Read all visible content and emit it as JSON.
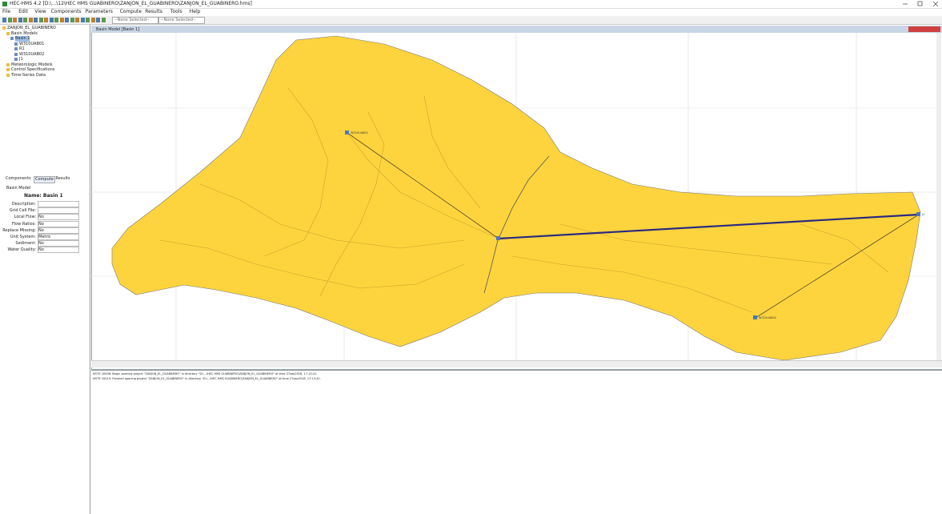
{
  "window": {
    "title": "HEC-HMS 4.2 [D:\\...\\12\\HEC HMS GUABINERO\\ZANJON_EL_GUABINERO\\ZANJON_EL_GUABINERO.hms]"
  },
  "menu": [
    "File",
    "Edit",
    "View",
    "Components",
    "Parameters",
    "Compute",
    "Results",
    "Tools",
    "Help"
  ],
  "toolbar": {
    "selectors": [
      "--None Selected--",
      "--None Selected--"
    ]
  },
  "tree": [
    {
      "label": "ZANJON_EL_GUABINERO",
      "level": 0
    },
    {
      "label": "Basin Models",
      "level": 1
    },
    {
      "label": "Basin 1",
      "level": 2
    },
    {
      "label": "W310UAB01",
      "level": 3
    },
    {
      "label": "R1",
      "level": 3
    },
    {
      "label": "W310UAB02",
      "level": 3
    },
    {
      "label": "J1",
      "level": 3
    },
    {
      "label": "Meteorologic Models",
      "level": 1
    },
    {
      "label": "Control Specifications",
      "level": 1
    },
    {
      "label": "Time-Series Data",
      "level": 1
    }
  ],
  "tabs": [
    "Components",
    "Compute",
    "Results"
  ],
  "panel": {
    "header": "Basin Model",
    "name": "Name: Basin 1",
    "rows": [
      {
        "label": "Description:",
        "value": ""
      },
      {
        "label": "Grid Cell File:",
        "value": ""
      },
      {
        "label": "Local Flow:",
        "value": "No"
      },
      {
        "label": "Flow Ratios:",
        "value": "No"
      },
      {
        "label": "Replace Missing:",
        "value": "No"
      },
      {
        "label": "Unit System:",
        "value": "Metric"
      },
      {
        "label": "Sediment:",
        "value": "No"
      },
      {
        "label": "Water Quality:",
        "value": "No"
      }
    ]
  },
  "map": {
    "title": "Basin Model [Basin 1]",
    "elements": [
      {
        "label": "W310UAB01"
      },
      {
        "label": "W310UAB02"
      },
      {
        "label": "J1"
      }
    ]
  },
  "log": [
    "NOTE 10008: Begin opening project \"ZANJON_EL_GUABINERO\" in directory \"D:\\...\\HEC HMS GUABINERO\\ZANJON_EL_GUABINERO\" at time 27sep2018, 17:13:41.",
    "NOTE 10019: Finished opening project \"ZANJON_EL_GUABINERO\" in directory \"D:\\...\\HEC HMS GUABINERO\\ZANJON_EL_GUABINERO\" at time 27sep2018, 17:13:42."
  ]
}
